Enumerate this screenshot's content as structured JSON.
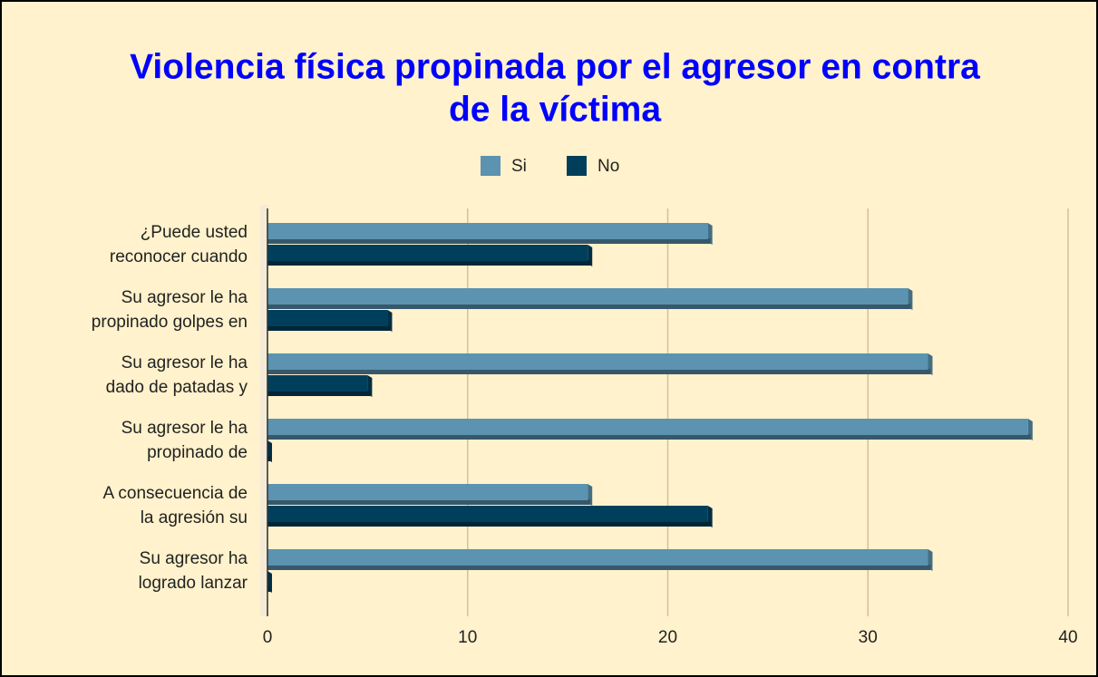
{
  "chart_data": {
    "type": "bar",
    "orientation": "horizontal",
    "title": [
      "Violencia física propinada por el agresor en contra",
      "de la víctima"
    ],
    "categories": [
      [
        "¿Puede usted",
        "reconocer cuando"
      ],
      [
        "Su agresor le ha",
        "propinado golpes en"
      ],
      [
        "Su agresor le ha",
        "dado de patadas y"
      ],
      [
        "Su agresor le ha",
        "propinado de"
      ],
      [
        "A consecuencia de",
        "la agresión su"
      ],
      [
        "Su agresor ha",
        "logrado lanzar"
      ]
    ],
    "series": [
      {
        "name": "Si",
        "color": "#5b93b0",
        "values": [
          22,
          32,
          33,
          38,
          16,
          33
        ]
      },
      {
        "name": "No",
        "color": "#003f5c",
        "values": [
          16,
          6,
          5,
          0,
          22,
          0
        ]
      }
    ],
    "xlim": [
      0,
      40
    ],
    "xticks": [
      0,
      10,
      20,
      30,
      40
    ],
    "grid": true,
    "legend": "top"
  }
}
